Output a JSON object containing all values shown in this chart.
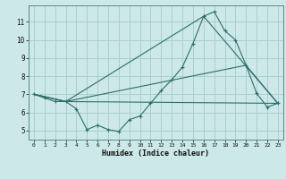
{
  "xlabel": "Humidex (Indice chaleur)",
  "bg_color": "#cce8e8",
  "grid_color": "#aacfcf",
  "line_color": "#2e6e68",
  "xlim": [
    -0.5,
    23.5
  ],
  "ylim": [
    4.5,
    11.9
  ],
  "xticks": [
    0,
    1,
    2,
    3,
    4,
    5,
    6,
    7,
    8,
    9,
    10,
    11,
    12,
    13,
    14,
    15,
    16,
    17,
    18,
    19,
    20,
    21,
    22,
    23
  ],
  "yticks": [
    5,
    6,
    7,
    8,
    9,
    10,
    11
  ],
  "line1_x": [
    0,
    1,
    2,
    3,
    4,
    5,
    6,
    7,
    8,
    9,
    10,
    11,
    12,
    13,
    14,
    15,
    16,
    17,
    18,
    19,
    20,
    21,
    22,
    23
  ],
  "line1_y": [
    7.0,
    6.8,
    6.6,
    6.6,
    6.2,
    5.05,
    5.3,
    5.05,
    4.95,
    5.6,
    5.8,
    6.5,
    7.2,
    7.8,
    8.5,
    9.8,
    11.3,
    11.55,
    10.5,
    10.0,
    8.6,
    7.05,
    6.3,
    6.5
  ],
  "line2_x": [
    0,
    3,
    23
  ],
  "line2_y": [
    7.0,
    6.6,
    6.5
  ],
  "line3_x": [
    0,
    3,
    20,
    23
  ],
  "line3_y": [
    7.0,
    6.6,
    8.6,
    6.5
  ],
  "line4_x": [
    0,
    3,
    16,
    23
  ],
  "line4_y": [
    7.0,
    6.6,
    11.3,
    6.5
  ]
}
